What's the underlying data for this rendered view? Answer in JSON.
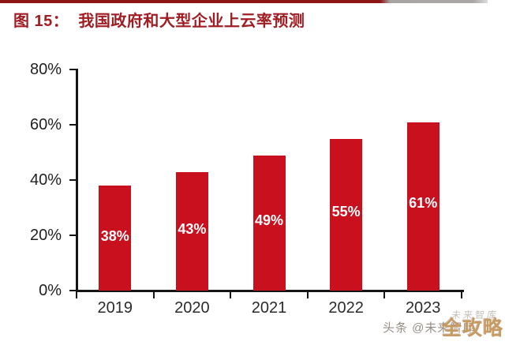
{
  "header": {
    "title": "图 15：  我国政府和大型企业上云率预测"
  },
  "chart_data": {
    "type": "bar",
    "title": "我国政府和大型企业上云率预测",
    "categories": [
      "2019",
      "2020",
      "2021",
      "2022",
      "2023"
    ],
    "values": [
      38,
      43,
      49,
      55,
      61
    ],
    "value_labels": [
      "38%",
      "43%",
      "49%",
      "55%",
      "61%"
    ],
    "xlabel": "",
    "ylabel": "",
    "ylim": [
      0,
      80
    ],
    "yticks": [
      "0%",
      "20%",
      "40%",
      "60%",
      "80%"
    ],
    "grid": false,
    "legend_position": "none",
    "bar_color": "#c8101e",
    "value_label_color": "#ffffff"
  },
  "watermark": {
    "faint_text": "未来智库",
    "gray_text": "头条 @未来智库",
    "gold_stamp": "全攻略"
  },
  "colors": {
    "title_red": "#a01e23",
    "rule_red": "#8c1518",
    "rule_gray": "#a9a5a5",
    "axis": "#141414"
  }
}
